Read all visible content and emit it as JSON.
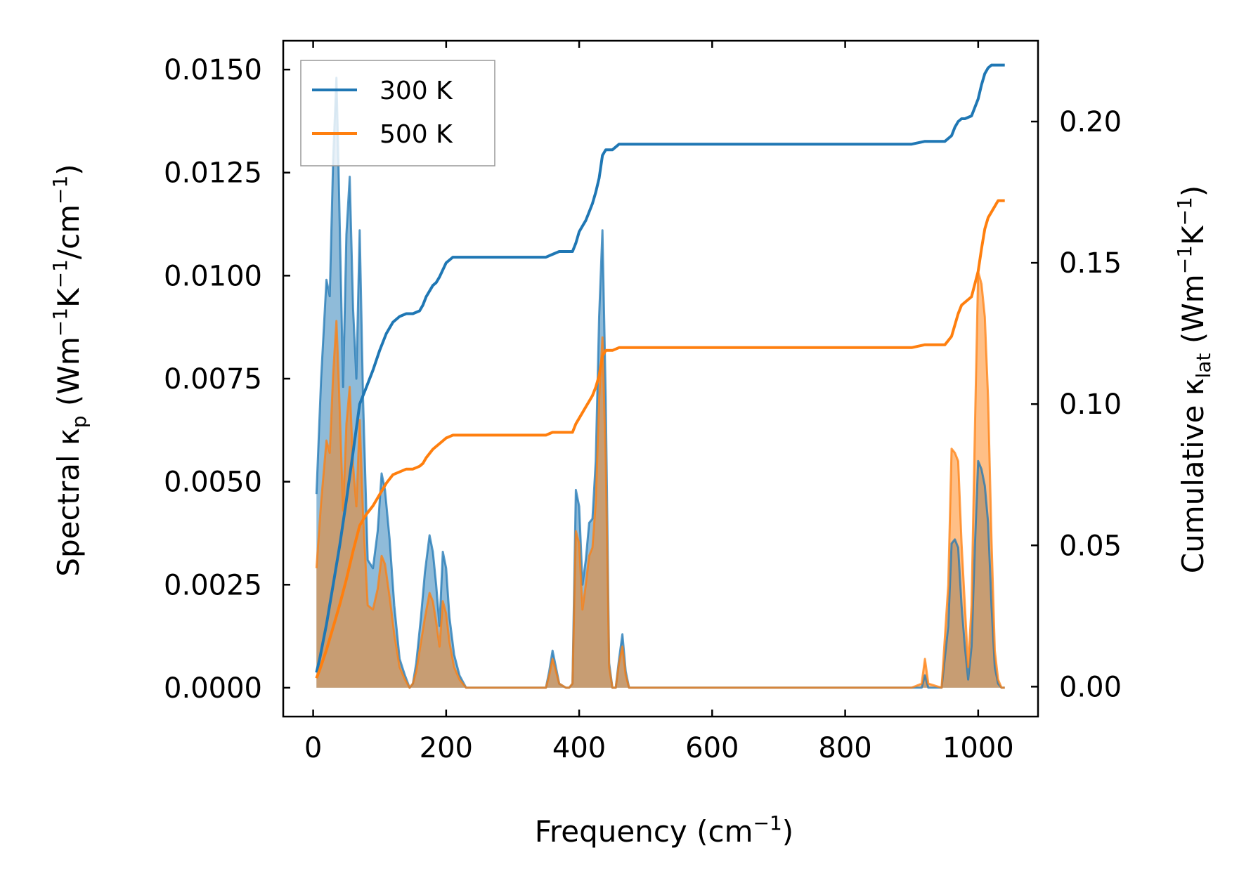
{
  "chart_data": {
    "type": "line",
    "xlabel": "Frequency (cm",
    "xlabel_sup": "−1",
    "xlabel_end": ")",
    "ylabel_left": {
      "t1": "Spectral κ",
      "t1_sub": "p",
      "t2": " (Wm",
      "t2_sup": "−1",
      "t3": "K",
      "t3_sup": "−1",
      "t4": "/cm",
      "t4_sup": "−1",
      "t5": ")"
    },
    "ylabel_right": {
      "t1": "Cumulative κ",
      "t1_sub": "lat",
      "t2": " (Wm",
      "t2_sup": "−1",
      "t3": "K",
      "t3_sup": "−1",
      "t4": ")"
    },
    "xlim": [
      -45,
      1090
    ],
    "ylim_left": [
      -0.0007,
      0.0157
    ],
    "ylim_right": [
      -0.0106,
      0.2286
    ],
    "x_ticks": [
      0,
      200,
      400,
      600,
      800,
      1000
    ],
    "x_tick_labels": [
      "0",
      "200",
      "400",
      "600",
      "800",
      "1000"
    ],
    "y_left_ticks": [
      0,
      0.0025,
      0.005,
      0.0075,
      0.01,
      0.0125,
      0.015
    ],
    "y_left_tick_labels": [
      "0.0000",
      "0.0025",
      "0.0050",
      "0.0075",
      "0.0100",
      "0.0125",
      "0.0150"
    ],
    "y_right_ticks": [
      0,
      0.05,
      0.1,
      0.15,
      0.2
    ],
    "y_right_tick_labels": [
      "0.00",
      "0.05",
      "0.10",
      "0.15",
      "0.20"
    ],
    "legend_position": "top-left",
    "colors": {
      "300 K": "#1f77b4",
      "500 K": "#ff7f0e"
    },
    "series": [
      {
        "name": "300 K",
        "spectral": {
          "x": [
            5,
            12,
            20,
            25,
            30,
            35,
            38,
            45,
            50,
            55,
            60,
            65,
            70,
            75,
            82,
            90,
            97,
            103,
            108,
            115,
            122,
            130,
            138,
            145,
            150,
            155,
            162,
            168,
            175,
            180,
            185,
            190,
            195,
            200,
            205,
            212,
            220,
            230,
            240,
            300,
            350,
            355,
            360,
            365,
            370,
            380,
            385,
            390,
            395,
            400,
            405,
            410,
            415,
            420,
            425,
            430,
            435,
            440,
            445,
            450,
            455,
            460,
            465,
            470,
            475,
            900,
            915,
            920,
            925,
            945,
            955,
            960,
            965,
            970,
            975,
            980,
            985,
            990,
            995,
            1000,
            1005,
            1010,
            1015,
            1020,
            1025,
            1030,
            1035,
            1040
          ],
          "y": [
            0.0047,
            0.0075,
            0.0099,
            0.0095,
            0.0128,
            0.0148,
            0.0128,
            0.0073,
            0.011,
            0.0124,
            0.0092,
            0.0075,
            0.0111,
            0.007,
            0.0031,
            0.0029,
            0.0038,
            0.0052,
            0.0048,
            0.0036,
            0.002,
            0.0007,
            0.0003,
            0.0,
            0.0001,
            0.0006,
            0.0017,
            0.0028,
            0.0037,
            0.0033,
            0.0025,
            0.0015,
            0.0033,
            0.0029,
            0.0017,
            0.0008,
            0.0003,
            0.0,
            0.0,
            0.0,
            0.0,
            0.0004,
            0.0009,
            0.0005,
            0.0001,
            0.0,
            0.0,
            0.0001,
            0.0048,
            0.0044,
            0.0025,
            0.0031,
            0.004,
            0.0041,
            0.0055,
            0.009,
            0.0111,
            0.007,
            0.0006,
            0.0,
            0.0,
            0.0007,
            0.0013,
            0.0004,
            0.0,
            0.0,
            0.0,
            0.0003,
            0.0,
            0.0,
            0.0015,
            0.0035,
            0.0036,
            0.0034,
            0.002,
            0.001,
            0.0002,
            0.001,
            0.0034,
            0.0055,
            0.0053,
            0.0049,
            0.004,
            0.002,
            0.0005,
            0.0001,
            0.0,
            0.0
          ]
        },
        "cumulative": {
          "x": [
            5,
            10,
            20,
            30,
            40,
            50,
            60,
            70,
            80,
            90,
            100,
            110,
            120,
            130,
            140,
            150,
            160,
            165,
            170,
            180,
            185,
            190,
            200,
            210,
            220,
            240,
            280,
            340,
            350,
            360,
            370,
            380,
            390,
            395,
            400,
            405,
            410,
            415,
            420,
            425,
            430,
            435,
            440,
            450,
            460,
            470,
            480,
            500,
            600,
            700,
            800,
            900,
            920,
            950,
            960,
            965,
            970,
            975,
            980,
            990,
            1000,
            1005,
            1010,
            1015,
            1020,
            1030,
            1040
          ],
          "y": [
            0.005,
            0.01,
            0.022,
            0.036,
            0.05,
            0.066,
            0.083,
            0.1,
            0.106,
            0.112,
            0.119,
            0.125,
            0.129,
            0.131,
            0.132,
            0.132,
            0.133,
            0.135,
            0.138,
            0.142,
            0.143,
            0.145,
            0.15,
            0.152,
            0.152,
            0.152,
            0.152,
            0.152,
            0.152,
            0.153,
            0.154,
            0.154,
            0.154,
            0.157,
            0.161,
            0.163,
            0.165,
            0.168,
            0.171,
            0.175,
            0.18,
            0.188,
            0.19,
            0.19,
            0.192,
            0.192,
            0.192,
            0.192,
            0.192,
            0.192,
            0.192,
            0.192,
            0.193,
            0.193,
            0.195,
            0.198,
            0.2,
            0.201,
            0.201,
            0.202,
            0.208,
            0.213,
            0.217,
            0.219,
            0.22,
            0.22,
            0.22
          ]
        }
      },
      {
        "name": "500 K",
        "spectral": {
          "x": [
            5,
            12,
            20,
            25,
            30,
            35,
            38,
            45,
            50,
            55,
            60,
            65,
            70,
            75,
            82,
            90,
            97,
            103,
            108,
            115,
            122,
            130,
            138,
            145,
            150,
            155,
            162,
            168,
            175,
            180,
            185,
            190,
            195,
            200,
            205,
            212,
            220,
            230,
            240,
            300,
            350,
            355,
            360,
            365,
            370,
            380,
            385,
            390,
            395,
            400,
            405,
            410,
            415,
            420,
            425,
            430,
            435,
            440,
            445,
            450,
            455,
            460,
            465,
            470,
            475,
            900,
            915,
            920,
            925,
            945,
            955,
            960,
            965,
            970,
            975,
            980,
            985,
            990,
            995,
            1000,
            1005,
            1010,
            1015,
            1020,
            1025,
            1030,
            1035,
            1040
          ],
          "y": [
            0.0029,
            0.0045,
            0.006,
            0.0057,
            0.0076,
            0.0089,
            0.0077,
            0.0043,
            0.0064,
            0.0073,
            0.0054,
            0.0044,
            0.0065,
            0.0042,
            0.002,
            0.0019,
            0.0024,
            0.0032,
            0.003,
            0.0022,
            0.0013,
            0.0005,
            0.0002,
            0.0,
            0.0001,
            0.0004,
            0.0011,
            0.0017,
            0.0023,
            0.0021,
            0.0016,
            0.001,
            0.0021,
            0.0018,
            0.0011,
            0.0005,
            0.0002,
            0.0,
            0.0,
            0.0,
            0.0,
            0.0003,
            0.0007,
            0.0004,
            0.0001,
            0.0,
            0.0,
            0.0001,
            0.0038,
            0.0035,
            0.0019,
            0.0025,
            0.0032,
            0.0034,
            0.0045,
            0.007,
            0.0085,
            0.0055,
            0.0005,
            0.0,
            0.0,
            0.0006,
            0.001,
            0.0003,
            0.0,
            0.0,
            0.0001,
            0.0007,
            0.0001,
            0.0,
            0.0025,
            0.0058,
            0.0057,
            0.0055,
            0.0035,
            0.002,
            0.0005,
            0.002,
            0.0062,
            0.0101,
            0.0098,
            0.009,
            0.007,
            0.0036,
            0.0009,
            0.0002,
            0.0,
            0.0
          ]
        },
        "cumulative": {
          "x": [
            5,
            10,
            20,
            30,
            40,
            50,
            60,
            70,
            80,
            90,
            100,
            110,
            120,
            130,
            140,
            150,
            160,
            165,
            170,
            180,
            185,
            190,
            200,
            210,
            220,
            240,
            280,
            340,
            350,
            360,
            370,
            380,
            390,
            395,
            400,
            405,
            410,
            415,
            420,
            425,
            430,
            435,
            440,
            450,
            460,
            470,
            480,
            500,
            600,
            700,
            800,
            900,
            920,
            950,
            960,
            965,
            970,
            975,
            980,
            990,
            1000,
            1005,
            1010,
            1015,
            1020,
            1030,
            1040
          ],
          "y": [
            0.003,
            0.006,
            0.013,
            0.021,
            0.029,
            0.038,
            0.048,
            0.057,
            0.061,
            0.064,
            0.068,
            0.072,
            0.075,
            0.076,
            0.077,
            0.077,
            0.078,
            0.079,
            0.081,
            0.084,
            0.085,
            0.086,
            0.088,
            0.089,
            0.089,
            0.089,
            0.089,
            0.089,
            0.089,
            0.09,
            0.09,
            0.09,
            0.09,
            0.093,
            0.095,
            0.097,
            0.099,
            0.101,
            0.103,
            0.106,
            0.11,
            0.117,
            0.119,
            0.119,
            0.12,
            0.12,
            0.12,
            0.12,
            0.12,
            0.12,
            0.12,
            0.12,
            0.121,
            0.121,
            0.124,
            0.128,
            0.132,
            0.135,
            0.136,
            0.138,
            0.147,
            0.155,
            0.162,
            0.166,
            0.168,
            0.172,
            0.172
          ]
        }
      }
    ]
  }
}
